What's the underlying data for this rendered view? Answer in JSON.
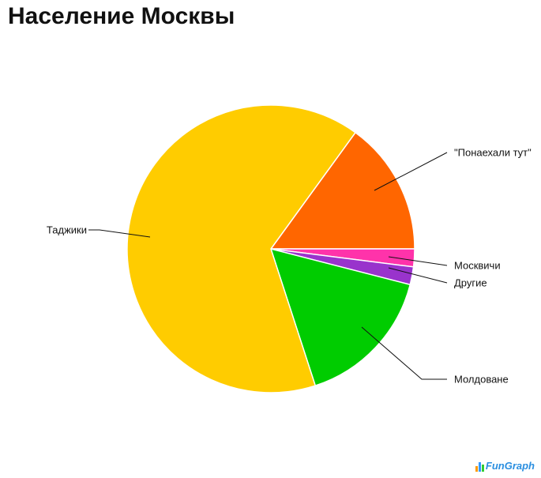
{
  "chart_data": {
    "type": "pie",
    "title": "Население Москвы",
    "slices": [
      {
        "label": "\"Понаехали тут\"",
        "value": 15,
        "color": "#ff6600"
      },
      {
        "label": "Москвичи",
        "value": 2,
        "color": "#ff33aa"
      },
      {
        "label": "Другие",
        "value": 2,
        "color": "#9933cc"
      },
      {
        "label": "Молдоване",
        "value": 16,
        "color": "#00cc00"
      },
      {
        "label": "Таджики",
        "value": 65,
        "color": "#ffcc00"
      }
    ]
  },
  "branding": {
    "logo_text": "FunGraph",
    "logo_icon": "bar-chart-icon"
  }
}
